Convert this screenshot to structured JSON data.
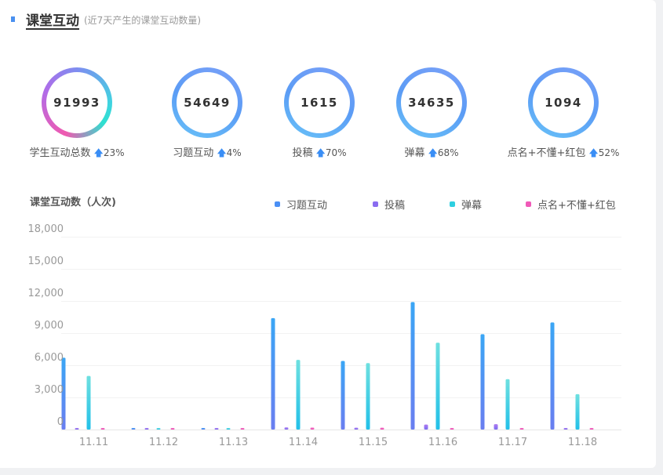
{
  "header": {
    "title": "课堂互动",
    "subtitle": "(近7天产生的课堂互动数量)"
  },
  "stats": [
    {
      "value": "91993",
      "label": "学生互动总数",
      "change": "23%"
    },
    {
      "value": "54649",
      "label": "习题互动",
      "change": "4%"
    },
    {
      "value": "1615",
      "label": "投稿",
      "change": "70%"
    },
    {
      "value": "34635",
      "label": "弹幕",
      "change": "68%"
    },
    {
      "value": "1094",
      "label": "点名+不懂+红包",
      "change": "52%"
    }
  ],
  "trend_arrow": "🡅",
  "chart_data": {
    "type": "bar",
    "title": "课堂互动数（人次)",
    "categories": [
      "11.11",
      "11.12",
      "11.13",
      "11.14",
      "11.15",
      "11.16",
      "11.17",
      "11.18"
    ],
    "ylim": [
      0,
      18000
    ],
    "yticks": [
      "0",
      "3,000",
      "6,000",
      "9,000",
      "12,000",
      "15,000",
      "18,000"
    ],
    "grid": true,
    "legend_position": "top-right",
    "series": [
      {
        "name": "习题互动",
        "color": "#4a8ff5",
        "values": [
          6700,
          100,
          20,
          10400,
          6400,
          11900,
          8900,
          10000
        ]
      },
      {
        "name": "投稿",
        "color": "#8a6cf0",
        "values": [
          40,
          0,
          0,
          200,
          170,
          470,
          500,
          80
        ]
      },
      {
        "name": "弹幕",
        "color": "#2ecfe0",
        "values": [
          5000,
          100,
          80,
          6500,
          6200,
          8100,
          4700,
          3300
        ]
      },
      {
        "name": "点名+不懂+红包",
        "color": "#f05ab8",
        "values": [
          60,
          0,
          0,
          180,
          170,
          130,
          150,
          150
        ]
      }
    ]
  }
}
